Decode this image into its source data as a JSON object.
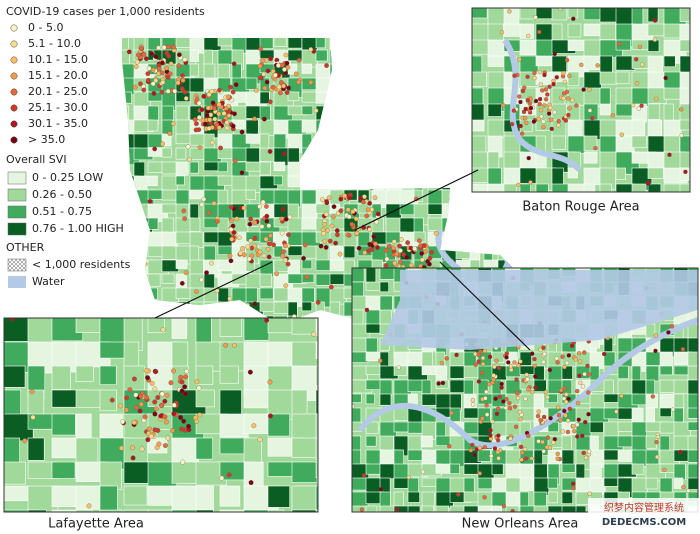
{
  "legend": {
    "cases_title": "COVID-19 cases per 1,000 residents",
    "cases_classes": [
      {
        "label": "0 - 5.0",
        "color": "#fff2c2"
      },
      {
        "label": "5.1 - 10.0",
        "color": "#fddc8c"
      },
      {
        "label": "10.1 - 15.0",
        "color": "#fbbf5f"
      },
      {
        "label": "15.1 - 20.0",
        "color": "#f59a4a"
      },
      {
        "label": "20.1 - 25.0",
        "color": "#e8663a"
      },
      {
        "label": "25.1 - 30.0",
        "color": "#d03a2a"
      },
      {
        "label": "30.1 - 35.0",
        "color": "#b0161e"
      },
      {
        "label": "> 35.0",
        "color": "#7a0010"
      }
    ],
    "svi_title": "Overall SVI",
    "svi_classes": [
      {
        "label": "0 - 0.25 LOW",
        "color": "#e5f5e0"
      },
      {
        "label": "0.26 - 0.50",
        "color": "#a1d99b"
      },
      {
        "label": "0.51 - 0.75",
        "color": "#41ab5d"
      },
      {
        "label": "0.76 - 1.00 HIGH",
        "color": "#0b5e23"
      }
    ],
    "other_title": "OTHER",
    "other_items": [
      {
        "label": "< 1,000 residents",
        "kind": "hatch"
      },
      {
        "label": "Water",
        "kind": "water",
        "color": "#b3c9e6"
      }
    ]
  },
  "insets": [
    {
      "label": "Baton Rouge Area"
    },
    {
      "label": "Lafayette Area"
    },
    {
      "label": "New Orleans Area"
    }
  ],
  "watermark": [
    "织梦内容管理系统",
    "DEDECMS.COM"
  ]
}
